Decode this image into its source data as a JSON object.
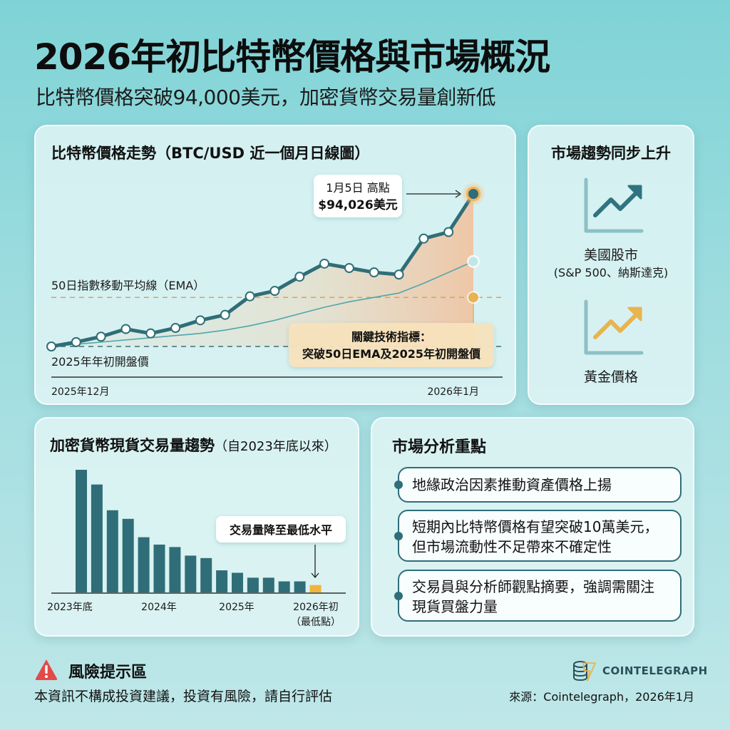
{
  "header": {
    "title": "2026年初比特幣價格與市場概況",
    "subtitle": "比特幣價格突破94,000美元，加密貨幣交易量創新低"
  },
  "btc_card": {
    "title": "比特幣價格走勢（BTC/USD 近一個月日線圖）",
    "ema_label": "50日指數移動平均線（EMA）",
    "open_label": "2025年年初開盤價",
    "peak_callout_line1": "1月5日 高點",
    "peak_callout_line2": "$94,026美元",
    "indicator_line1": "關鍵技術指標：",
    "indicator_line2": "突破50日EMA及2025年初開盤價",
    "x_start": "2025年12月",
    "x_end": "2026年1月"
  },
  "trend_card": {
    "title": "市場趨勢同步上升",
    "items": [
      {
        "label": "美國股市",
        "sub": "(S&P 500、納斯達克)",
        "icon": "trend-up-arrow-icon",
        "color": "#2f7480"
      },
      {
        "label": "黃金價格",
        "sub": "",
        "icon": "trend-up-arrow-icon",
        "color": "#e8b44f"
      }
    ]
  },
  "volume_card": {
    "title": "加密貨幣現貨交易量趨勢",
    "title_note": "（自2023年底以來）",
    "callout": "交易量降至最低水平",
    "x_labels": [
      "2023年底",
      "2024年",
      "2025年",
      "2026年初",
      "（最低點）"
    ]
  },
  "analysis_card": {
    "title": "市場分析重點",
    "points": [
      {
        "lines": [
          "地緣政治因素推動資產價格上揚"
        ]
      },
      {
        "lines": [
          "短期內比特幣價格有望突破10萬美元，",
          "但市場流動性不足帶來不確定性"
        ]
      },
      {
        "lines": [
          "交易員與分析師觀點摘要，強調需關注",
          "現貨買盤力量"
        ]
      }
    ]
  },
  "footer": {
    "risk_title": "風險提示區",
    "risk_text": "本資訊不構成投資建議，投資有風險，請自行評估",
    "brand": "COINTELEGRAPH",
    "source": "來源：Cointelegraph，2026年1月"
  },
  "colors": {
    "primary": "#2f6e78",
    "accent": "#e8b44f",
    "ema": "#4fa6ad",
    "bar": "#2f6e78",
    "bar_highlight": "#f0b43c",
    "warning": "#e24a4a"
  },
  "chart_data": [
    {
      "type": "line",
      "title": "比特幣價格走勢（BTC/USD 近一個月日線圖）",
      "xlabel": "",
      "ylabel": "",
      "x_tick_labels": [
        "2025年12月",
        "2026年1月"
      ],
      "series": [
        {
          "name": "BTC/USD",
          "values": [
            0,
            4,
            9,
            16,
            12,
            17,
            24,
            29,
            46,
            51,
            64,
            76,
            72,
            68,
            66,
            99,
            105,
            140
          ],
          "peak": {
            "label": "1月5日 高點",
            "value": 94026
          }
        },
        {
          "name": "50日指數移動平均線（EMA）",
          "values": [
            0,
            2,
            4,
            6,
            8,
            10,
            12,
            15,
            19,
            24,
            30,
            36,
            41,
            45,
            49,
            58,
            68,
            78
          ]
        }
      ],
      "reference_lines": [
        {
          "name": "50日指數移動平均線（EMA）",
          "value": 45
        },
        {
          "name": "2025年年初開盤價",
          "value": 0
        }
      ],
      "y_scale": "relative (no axis shown)"
    },
    {
      "type": "bar",
      "title": "加密貨幣現貨交易量趨勢（自2023年底以來）",
      "x_tick_labels": [
        "2023年底",
        "2024年",
        "2025年",
        "2026年初（最低點）"
      ],
      "values": [
        100,
        88,
        67,
        60,
        45,
        39,
        37,
        30,
        28,
        18,
        16,
        12,
        12,
        9,
        9,
        6
      ],
      "highlight_index": 15,
      "y_scale": "relative (no axis shown)"
    }
  ]
}
